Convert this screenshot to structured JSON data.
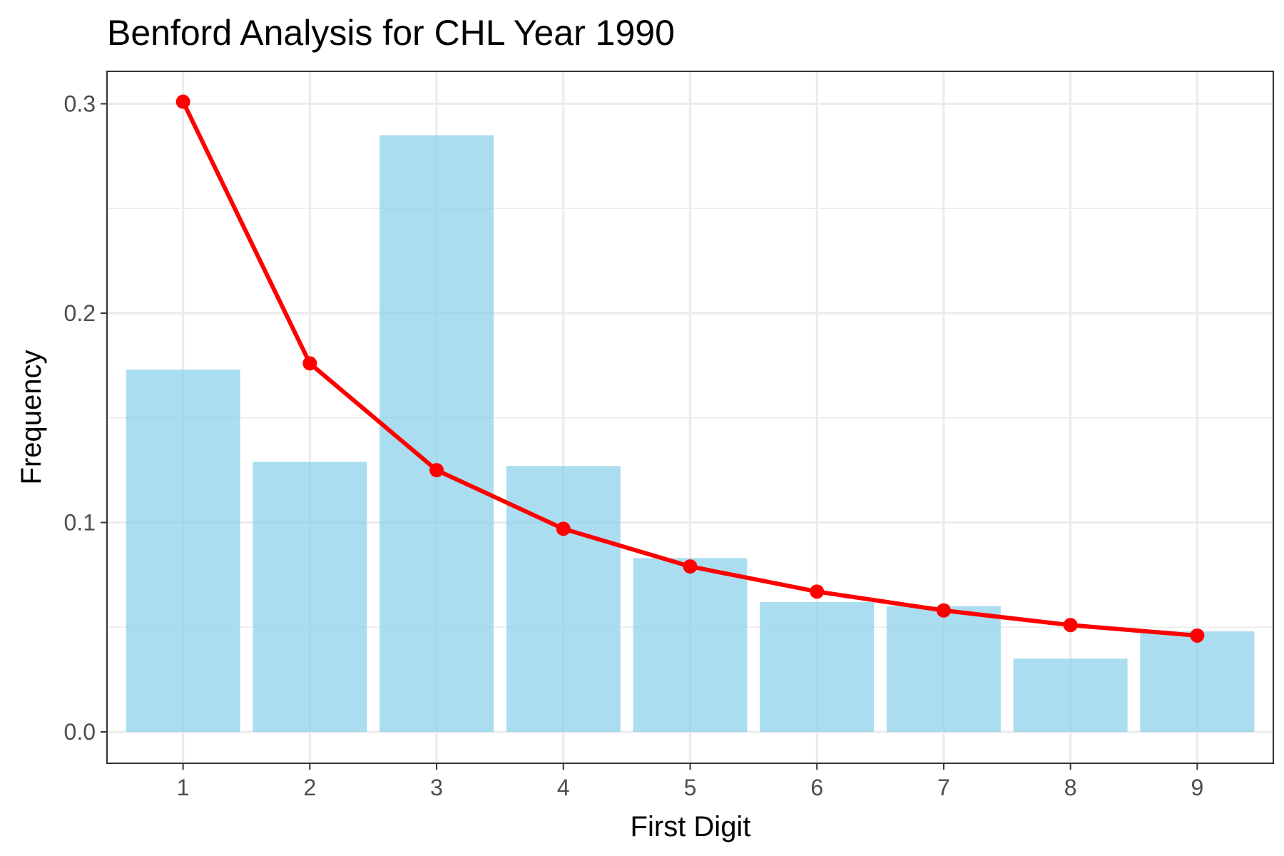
{
  "chart_data": {
    "type": "bar",
    "title": "Benford Analysis for CHL Year 1990",
    "xlabel": "First Digit",
    "ylabel": "Frequency",
    "categories": [
      "1",
      "2",
      "3",
      "4",
      "5",
      "6",
      "7",
      "8",
      "9"
    ],
    "series": [
      {
        "type": "bar",
        "values": [
          0.173,
          0.129,
          0.285,
          0.127,
          0.083,
          0.062,
          0.06,
          0.035,
          0.048
        ],
        "color": "#87CEEB"
      },
      {
        "type": "line",
        "values": [
          0.301,
          0.176,
          0.125,
          0.097,
          0.079,
          0.067,
          0.058,
          0.051,
          0.046
        ],
        "color": "#FF0000",
        "markers": true
      }
    ],
    "ylim": [
      -0.015,
      0.3155
    ],
    "yticks": [
      0.0,
      0.1,
      0.2,
      0.3
    ],
    "ytick_labels": [
      "0.0",
      "0.1",
      "0.2",
      "0.3"
    ],
    "grid": true,
    "legend": "none",
    "background": "#ffffff",
    "panel_border_color": "#333333",
    "grid_color": "#ebebeb"
  }
}
